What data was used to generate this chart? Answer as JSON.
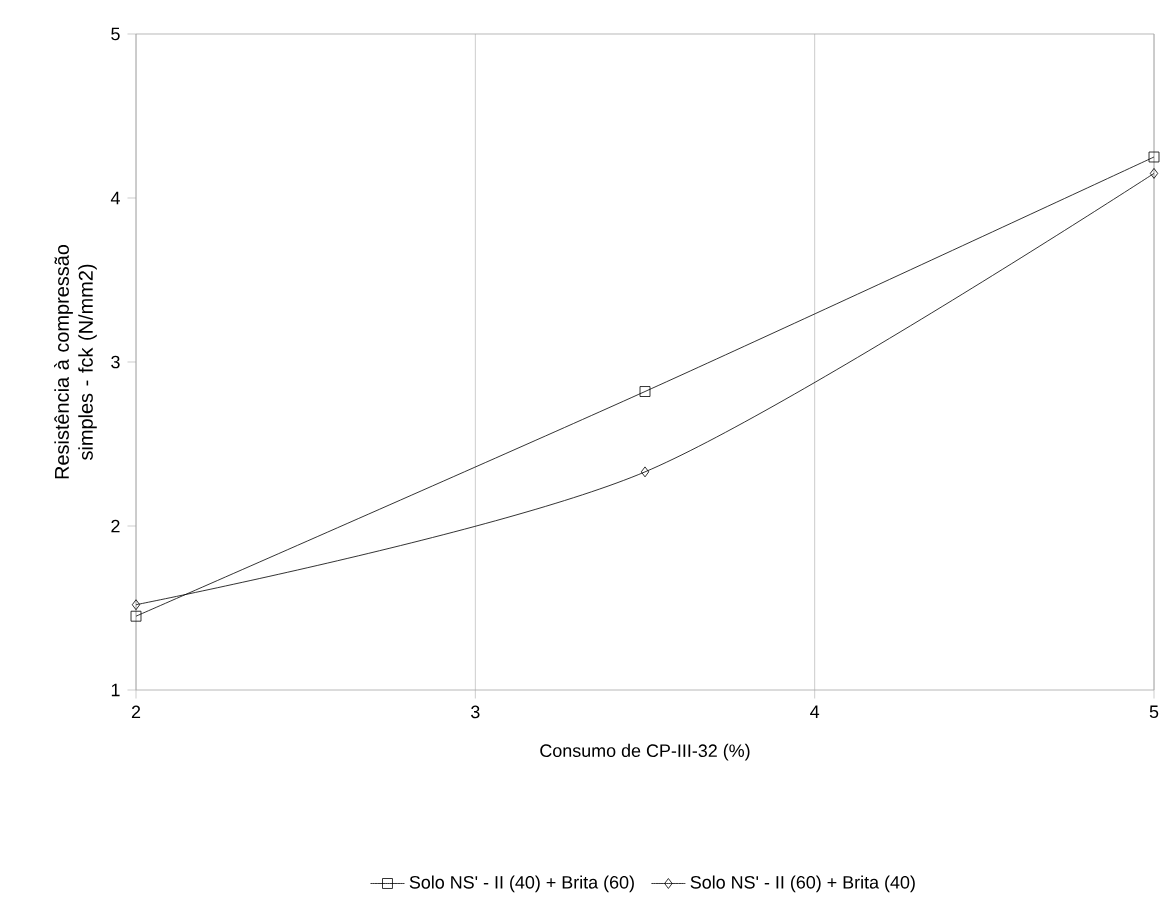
{
  "chart_data": {
    "type": "line",
    "xlabel": "Consumo de CP-III-32 (%)",
    "ylabel": "Resistência à compressão simples - fck (N/mm2)",
    "x": [
      2,
      3.5,
      5
    ],
    "series": [
      {
        "name": "Solo NS' - II (40) + Brita (60)",
        "color": "#000000",
        "marker": "square",
        "values": [
          1.45,
          2.82,
          4.25
        ]
      },
      {
        "name": "Solo NS' - II (60) + Brita (40)",
        "color": "#000000",
        "marker": "diamond",
        "values": [
          1.52,
          2.33,
          4.15
        ]
      }
    ],
    "xlim": [
      2,
      5
    ],
    "xticks": [
      2,
      3,
      4,
      5
    ],
    "ylim": [
      1,
      5
    ],
    "yticks": [
      1,
      2,
      3,
      4,
      5
    ],
    "grid": "x",
    "legend": "bottom",
    "line_style": "solid"
  }
}
